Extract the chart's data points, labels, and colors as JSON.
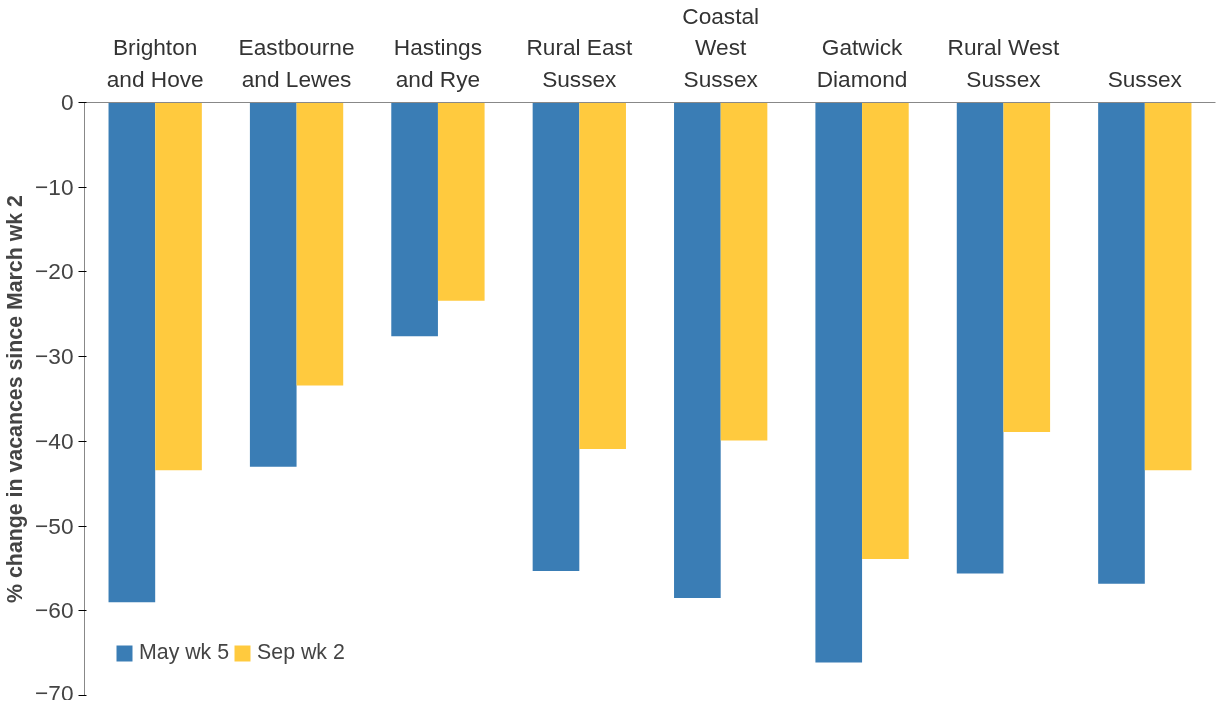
{
  "chart_data": {
    "type": "bar",
    "categories": [
      "Brighton\nand Hove",
      "Eastbourne\nand Lewes",
      "Hastings\nand Rye",
      "Rural East\nSussex",
      "Coastal\nWest\nSussex",
      "Gatwick\nDiamond",
      "Rural West\nSussex",
      "Sussex"
    ],
    "series": [
      {
        "name": "May wk 5",
        "color": "#3a7db5",
        "values": [
          -59.0,
          -43.0,
          -27.6,
          -55.3,
          -58.5,
          -66.1,
          -55.6,
          -56.8
        ]
      },
      {
        "name": "Sep wk 2",
        "color": "#ffca3e",
        "values": [
          -43.4,
          -33.4,
          -23.4,
          -40.9,
          -39.9,
          -53.9,
          -38.9,
          -43.4
        ]
      }
    ],
    "ylabel": "% change in vacances since March wk 2",
    "ylim": [
      -70,
      0
    ],
    "yticks": [
      0,
      -10,
      -20,
      -30,
      -40,
      -50,
      -60,
      -70
    ],
    "grid": false,
    "legend": "bottom left"
  }
}
